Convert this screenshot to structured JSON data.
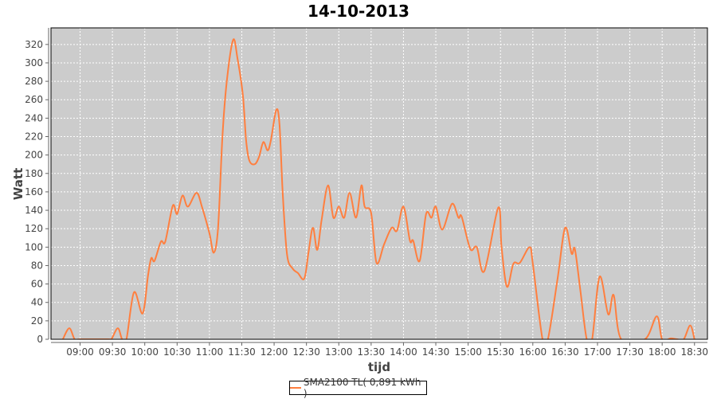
{
  "chart_data": {
    "type": "line",
    "title": "14-10-2013",
    "xlabel": "tijd",
    "ylabel": "Watt",
    "xlim": [
      "08:33",
      "18:42"
    ],
    "ylim": [
      0,
      338
    ],
    "grid": true,
    "legend_position": "bottom",
    "plot_background": "#cccccc",
    "x_ticks": [
      "09:00",
      "09:30",
      "10:00",
      "10:30",
      "11:00",
      "11:30",
      "12:00",
      "12:30",
      "13:00",
      "13:30",
      "14:00",
      "14:30",
      "15:00",
      "15:30",
      "16:00",
      "16:30",
      "17:00",
      "17:30",
      "18:00",
      "18:30"
    ],
    "y_ticks": [
      0,
      20,
      40,
      60,
      80,
      100,
      120,
      140,
      160,
      180,
      200,
      220,
      240,
      260,
      280,
      300,
      320
    ],
    "series": [
      {
        "name": "SMA2100 TL( 0,891 kWh )",
        "color": "#ff7f3f",
        "x": [
          "08:44",
          "08:50",
          "08:55",
          "09:00",
          "09:26",
          "09:29",
          "09:35",
          "09:39",
          "09:43",
          "09:50",
          "09:58",
          "10:03",
          "10:06",
          "10:09",
          "10:15",
          "10:19",
          "10:26",
          "10:30",
          "10:35",
          "10:40",
          "10:48",
          "10:53",
          "11:00",
          "11:04",
          "11:08",
          "11:12",
          "11:16",
          "11:22",
          "11:26",
          "11:31",
          "11:34",
          "11:37",
          "11:42",
          "11:46",
          "11:50",
          "11:54",
          "11:57",
          "12:02",
          "12:05",
          "12:08",
          "12:12",
          "12:17",
          "12:22",
          "12:28",
          "12:32",
          "12:36",
          "12:40",
          "12:44",
          "12:50",
          "12:55",
          "13:00",
          "13:05",
          "13:10",
          "13:16",
          "13:21",
          "13:24",
          "13:30",
          "13:35",
          "13:42",
          "13:49",
          "13:54",
          "14:00",
          "14:06",
          "14:09",
          "14:15",
          "14:21",
          "14:26",
          "14:30",
          "14:36",
          "14:45",
          "14:51",
          "14:54",
          "15:02",
          "15:08",
          "15:15",
          "15:28",
          "15:31",
          "15:36",
          "15:42",
          "15:48",
          "15:57",
          "16:00",
          "16:09",
          "16:14",
          "16:23",
          "16:30",
          "16:36",
          "16:39",
          "16:44",
          "16:50",
          "16:55",
          "17:02",
          "17:10",
          "17:15",
          "17:22",
          "17:44",
          "17:55",
          "18:00",
          "18:08",
          "18:14",
          "18:20",
          "18:26",
          "18:30"
        ],
        "values": [
          0,
          12,
          0,
          0,
          0,
          0,
          12,
          0,
          0,
          51,
          28,
          69,
          88,
          85,
          106,
          106,
          145,
          136,
          156,
          144,
          159,
          144,
          115,
          94,
          121,
          219,
          279,
          325,
          305,
          265,
          216,
          194,
          190,
          198,
          214,
          205,
          216,
          249,
          233,
          158,
          92,
          77,
          72,
          66,
          95,
          121,
          97,
          129,
          167,
          132,
          144,
          132,
          159,
          132,
          167,
          144,
          137,
          83,
          103,
          121,
          118,
          144,
          107,
          107,
          85,
          136,
          132,
          144,
          119,
          147,
          132,
          133,
          98,
          100,
          74,
          143,
          100,
          57,
          82,
          83,
          100,
          82,
          0,
          0,
          66,
          121,
          93,
          98,
          54,
          0,
          0,
          68,
          27,
          48,
          0,
          0,
          25,
          0,
          1,
          0,
          0,
          15,
          0
        ]
      }
    ]
  }
}
